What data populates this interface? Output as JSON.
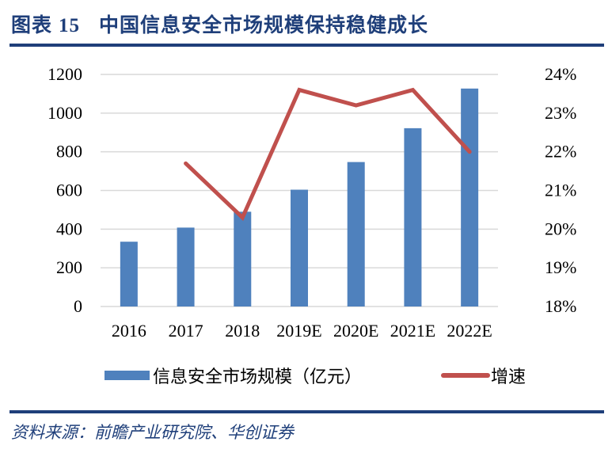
{
  "header": {
    "figure_label": "图表",
    "figure_number": "15",
    "title": "中国信息安全市场规模保持稳健成长"
  },
  "source": "资料来源：前瞻产业研究院、华创证券",
  "colors": {
    "title": "#1f3f7a",
    "bar": "#4f81bd",
    "line": "#c0504d",
    "grid": "#d9d9d9"
  },
  "chart_data": {
    "type": "bar+line",
    "title": "中国信息安全市场规模保持稳健成长",
    "categories": [
      "2016",
      "2017",
      "2018",
      "2019E",
      "2020E",
      "2021E",
      "2022E"
    ],
    "series": [
      {
        "name": "信息安全市场规模（亿元）",
        "type": "bar",
        "axis": "left",
        "values": [
          335,
          408,
          490,
          604,
          747,
          922,
          1127
        ]
      },
      {
        "name": "增速",
        "type": "line",
        "axis": "right",
        "values": [
          null,
          21.7,
          20.3,
          23.6,
          23.2,
          23.6,
          22.0
        ]
      }
    ],
    "left_axis": {
      "ylim": [
        0,
        1200
      ],
      "ticks": [
        "0",
        "200",
        "400",
        "600",
        "800",
        "1000",
        "1200"
      ]
    },
    "right_axis": {
      "ylim": [
        18,
        24
      ],
      "ticks": [
        "18%",
        "19%",
        "20%",
        "21%",
        "22%",
        "23%",
        "24%"
      ]
    },
    "grid": true,
    "legend_position": "bottom"
  }
}
